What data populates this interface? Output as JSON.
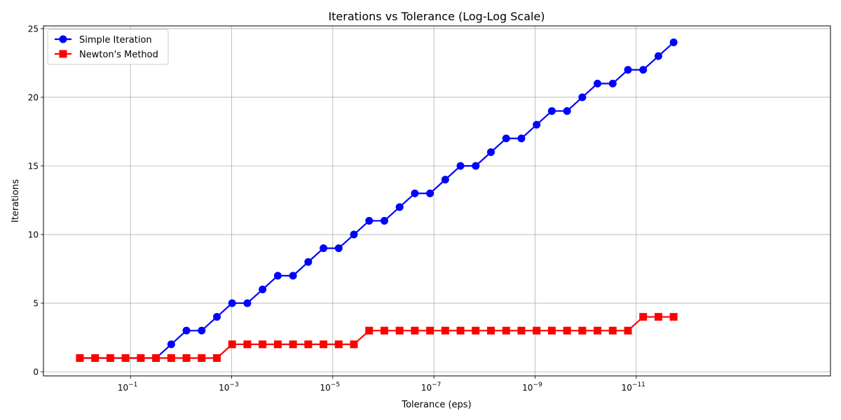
{
  "chart_data": {
    "type": "line",
    "title": "Iterations vs Tolerance (Log-Log Scale)",
    "xlabel": "Tolerance (eps)",
    "ylabel": "Iterations",
    "x_scale": "log",
    "x_inverted": true,
    "xlim": [
      5.25,
      1.44e-15
    ],
    "ylim": [
      -0.3,
      25.2
    ],
    "x_ticks": [
      {
        "value": 0.1,
        "base": "10",
        "exp": "−1"
      },
      {
        "value": 0.001,
        "base": "10",
        "exp": "−3"
      },
      {
        "value": 1e-05,
        "base": "10",
        "exp": "−5"
      },
      {
        "value": 1e-07,
        "base": "10",
        "exp": "−7"
      },
      {
        "value": 1e-09,
        "base": "10",
        "exp": "−9"
      },
      {
        "value": 1e-11,
        "base": "10",
        "exp": "−11"
      }
    ],
    "y_ticks": [
      0,
      5,
      10,
      15,
      20,
      25
    ],
    "grid": true,
    "legend_position": "top-left",
    "x": [
      1,
      0.5,
      0.25,
      0.125,
      0.0625,
      0.03125,
      0.015625,
      0.0078125,
      0.00390625,
      0.001953125,
      0.0009765625,
      0.00048828125,
      0.000244140625,
      0.0001220703125,
      6.103515625e-05,
      3.0517578125e-05,
      1.52587890625e-05,
      7.62939453125e-06,
      3.814697265625e-06,
      1.9073486328125e-06,
      9.5367431640625e-07,
      4.76837158203125e-07,
      2.384185791015625e-07,
      1.1920928955078125e-07,
      5.960464477539063e-08,
      2.9802322387695312e-08,
      1.4901161193847656e-08,
      7.450580596923828e-09,
      3.725290298461914e-09,
      1.862645149230957e-09,
      9.313225746154785e-10,
      4.656612873077393e-10,
      2.3283064365386963e-10,
      1.1641532182693481e-10,
      5.820766091346741e-11,
      2.9103830456733704e-11,
      1.4551915228366852e-11,
      7.275957614183426e-12,
      3.637978807091713e-12,
      1.8189894035458565e-12
    ],
    "series": [
      {
        "name": "Simple Iteration",
        "color": "#0000ff",
        "marker": "circle",
        "values": [
          1,
          1,
          1,
          1,
          1,
          1,
          2,
          3,
          3,
          4,
          5,
          5,
          6,
          7,
          7,
          8,
          9,
          9,
          10,
          11,
          11,
          12,
          13,
          13,
          14,
          15,
          15,
          16,
          17,
          17,
          18,
          19,
          19,
          20,
          21,
          21,
          22,
          22,
          23,
          24
        ]
      },
      {
        "name": "Newton's Method",
        "color": "#ff0000",
        "marker": "square",
        "values": [
          1,
          1,
          1,
          1,
          1,
          1,
          1,
          1,
          1,
          1,
          2,
          2,
          2,
          2,
          2,
          2,
          2,
          2,
          2,
          3,
          3,
          3,
          3,
          3,
          3,
          3,
          3,
          3,
          3,
          3,
          3,
          3,
          3,
          3,
          3,
          3,
          3,
          4,
          4,
          4
        ]
      }
    ]
  }
}
